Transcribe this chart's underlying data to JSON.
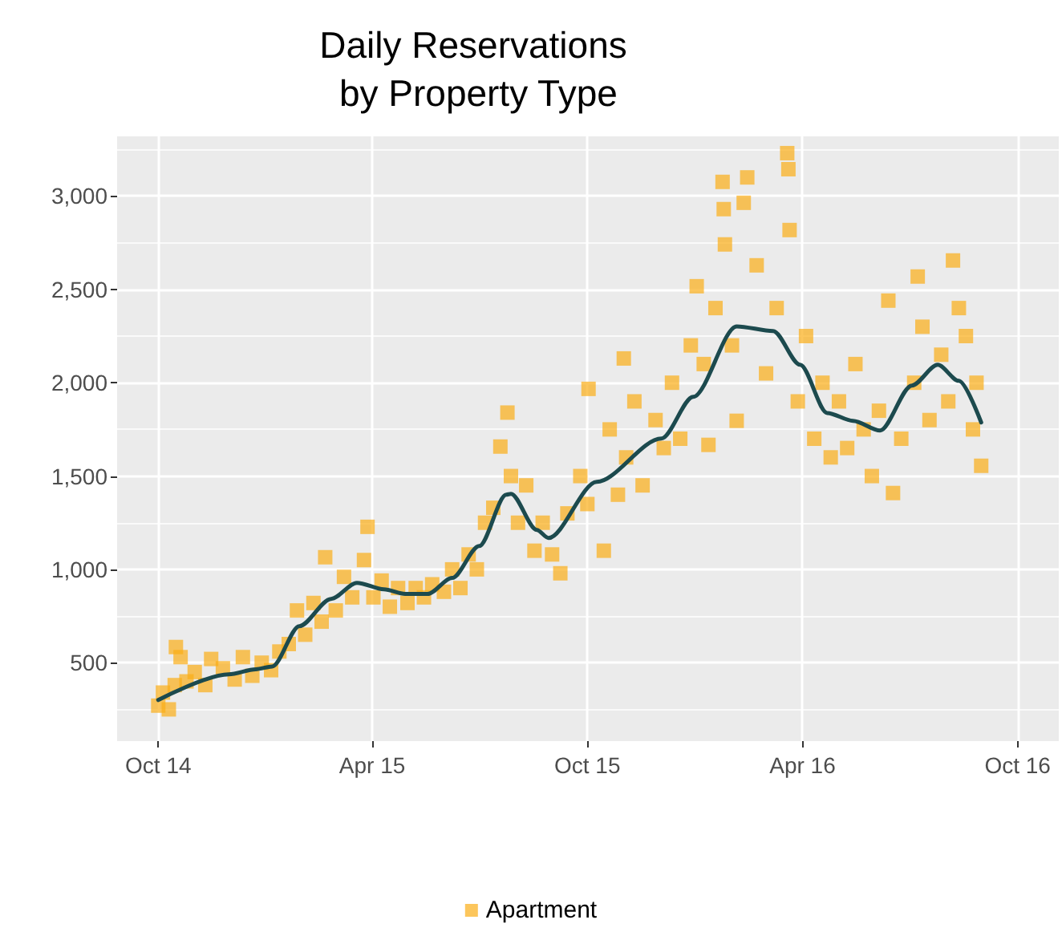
{
  "chart_data": {
    "type": "scatter",
    "title": "Daily Reservations\n by Property Type",
    "xlim": [
      "2014-08-27",
      "2016-11-05"
    ],
    "xticks": [
      {
        "value": "2014-10-01",
        "label": "Oct 14"
      },
      {
        "value": "2015-04-01",
        "label": "Apr 15"
      },
      {
        "value": "2015-10-01",
        "label": "Oct 15"
      },
      {
        "value": "2016-04-01",
        "label": "Apr 16"
      },
      {
        "value": "2016-10-01",
        "label": "Oct 16"
      }
    ],
    "ylim": [
      80,
      3320
    ],
    "yticks": [
      500,
      {
        "value": 1000,
        "label": "1,000"
      },
      {
        "value": 1500,
        "label": "1,500"
      },
      {
        "value": 2000,
        "label": "2,000"
      },
      {
        "value": 2500,
        "label": "2,500"
      },
      {
        "value": 3000,
        "label": "3,000"
      }
    ],
    "grid": true,
    "legend": "bottom",
    "series": [
      {
        "name": "Apartment",
        "marker": "square",
        "color": "#fbae17",
        "x": [
          "2014-10-01",
          "2014-10-05",
          "2014-10-10",
          "2014-10-15",
          "2014-10-16",
          "2014-10-20",
          "2014-10-25",
          "2014-11-01",
          "2014-11-10",
          "2014-11-15",
          "2014-11-25",
          "2014-12-05",
          "2014-12-12",
          "2014-12-20",
          "2014-12-28",
          "2015-01-05",
          "2015-01-12",
          "2015-01-20",
          "2015-01-27",
          "2015-02-03",
          "2015-02-10",
          "2015-02-17",
          "2015-02-20",
          "2015-03-01",
          "2015-03-08",
          "2015-03-15",
          "2015-03-25",
          "2015-03-28",
          "2015-04-02",
          "2015-04-09",
          "2015-04-16",
          "2015-04-23",
          "2015-05-01",
          "2015-05-08",
          "2015-05-15",
          "2015-05-22",
          "2015-06-01",
          "2015-06-08",
          "2015-06-15",
          "2015-06-22",
          "2015-06-29",
          "2015-07-06",
          "2015-07-13",
          "2015-07-19",
          "2015-07-25",
          "2015-07-28",
          "2015-08-03",
          "2015-08-10",
          "2015-08-17",
          "2015-08-24",
          "2015-09-01",
          "2015-09-08",
          "2015-09-14",
          "2015-09-25",
          "2015-10-01",
          "2015-10-02",
          "2015-10-15",
          "2015-10-20",
          "2015-10-27",
          "2015-11-01",
          "2015-11-03",
          "2015-11-10",
          "2015-11-17",
          "2015-11-28",
          "2015-12-05",
          "2015-12-12",
          "2015-12-19",
          "2015-12-28",
          "2016-01-02",
          "2016-01-08",
          "2016-01-12",
          "2016-01-18",
          "2016-01-24",
          "2016-01-25",
          "2016-01-26",
          "2016-02-01",
          "2016-02-05",
          "2016-02-11",
          "2016-02-14",
          "2016-02-22",
          "2016-03-01",
          "2016-03-10",
          "2016-03-19",
          "2016-03-20",
          "2016-03-21",
          "2016-03-28",
          "2016-04-04",
          "2016-04-11",
          "2016-04-18",
          "2016-04-25",
          "2016-05-02",
          "2016-05-09",
          "2016-05-16",
          "2016-05-23",
          "2016-05-30",
          "2016-06-05",
          "2016-06-13",
          "2016-06-17",
          "2016-06-24",
          "2016-07-05",
          "2016-07-08",
          "2016-07-12",
          "2016-07-18",
          "2016-07-28",
          "2016-08-03",
          "2016-08-07",
          "2016-08-12",
          "2016-08-18",
          "2016-08-24",
          "2016-08-27",
          "2016-08-31"
        ],
        "values": [
          270,
          340,
          250,
          380,
          584,
          530,
          400,
          450,
          380,
          520,
          470,
          410,
          530,
          430,
          500,
          460,
          560,
          600,
          780,
          650,
          820,
          720,
          1065,
          780,
          960,
          850,
          1050,
          1228,
          850,
          940,
          800,
          900,
          820,
          900,
          850,
          920,
          880,
          1000,
          900,
          1080,
          1000,
          1250,
          1330,
          1658,
          1840,
          1500,
          1250,
          1450,
          1100,
          1250,
          1080,
          979,
          1300,
          1500,
          1350,
          1967,
          1100,
          1750,
          1400,
          2130,
          1600,
          1900,
          1450,
          1800,
          1650,
          2000,
          1700,
          2200,
          2517,
          2100,
          1667,
          2400,
          3076,
          2930,
          2741,
          2200,
          1796,
          2964,
          3100,
          2629,
          2050,
          2400,
          3230,
          3144,
          2818,
          1900,
          2250,
          1700,
          2000,
          1600,
          1900,
          1650,
          2100,
          1750,
          1500,
          1850,
          2440,
          1409,
          1700,
          2000,
          2569,
          2300,
          1800,
          2150,
          1900,
          2655,
          2400,
          2250,
          1750,
          2000,
          1555
        ]
      },
      {
        "type": "line",
        "marker": "none",
        "color": "#1c4a4e",
        "x": [
          "2014-10-01",
          "2014-11-30",
          "2014-12-23",
          "2015-01-06",
          "2015-01-29",
          "2015-02-25",
          "2015-03-19",
          "2015-04-11",
          "2015-04-29",
          "2015-05-18",
          "2015-06-08",
          "2015-07-01",
          "2015-07-24",
          "2015-07-28",
          "2015-08-19",
          "2015-08-29",
          "2015-10-09",
          "2015-12-03",
          "2015-12-30",
          "2016-02-05",
          "2016-03-07",
          "2016-03-30",
          "2016-04-22",
          "2016-05-14",
          "2016-06-06",
          "2016-07-03",
          "2016-07-25",
          "2016-08-12",
          "2016-08-31"
        ],
        "values": [
          300,
          438,
          465,
          480,
          696,
          842,
          928,
          893,
          868,
          868,
          954,
          1125,
          1400,
          1405,
          1211,
          1168,
          1469,
          1701,
          1924,
          2302,
          2277,
          2096,
          1838,
          1796,
          1744,
          1985,
          2096,
          2010,
          1787
        ]
      }
    ]
  }
}
